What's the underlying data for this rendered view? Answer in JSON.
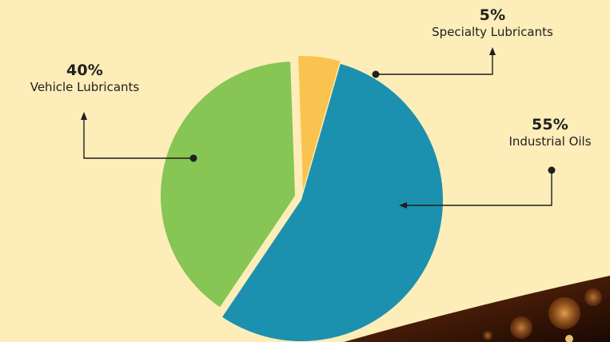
{
  "chart_data": {
    "type": "pie",
    "series": [
      {
        "values": [
          {
            "category": "Industrial Oils",
            "value": 55,
            "label_pct": "55%"
          },
          {
            "category": "Vehicle Lubricants",
            "value": 40,
            "label_pct": "40%"
          },
          {
            "category": "Specialty Lubricants",
            "value": 5,
            "label_pct": "5%"
          }
        ]
      }
    ],
    "title": "",
    "legend": "none (labels beside slices with pointer lines)",
    "exploded": "all slices separated"
  },
  "colors": {
    "background": "#FDEDB8",
    "industrial_oils": "#1C90AF",
    "vehicle_lubricants": "#87C555",
    "specialty_lubricants": "#FAC350",
    "pointer_lines": "#1f1f1f"
  },
  "labels": {
    "industrial": {
      "pct": "55%",
      "name": "Industrial Oils"
    },
    "vehicle": {
      "pct": "40%",
      "name": "Vehicle Lubricants"
    },
    "specialty": {
      "pct": "5%",
      "name": "Specialty Lubricants"
    }
  },
  "decoration": "dark bronze background image with bokeh lights, bottom-right corner"
}
